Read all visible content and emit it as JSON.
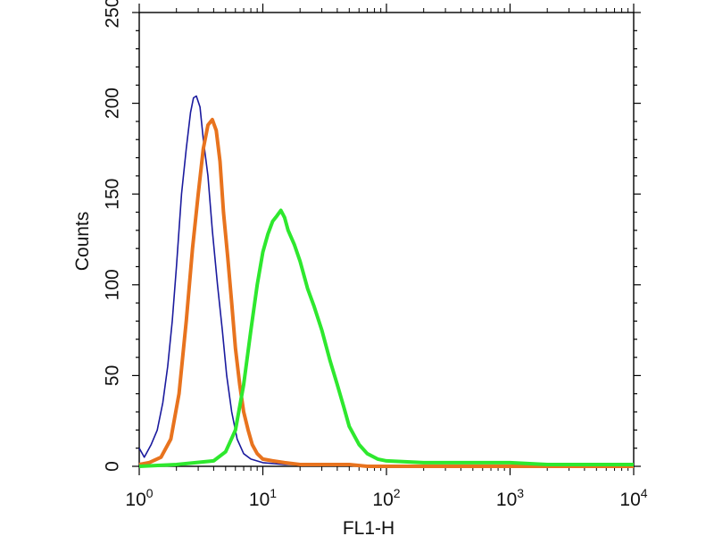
{
  "chart_data": {
    "type": "line",
    "title": "",
    "xlabel": "FL1-H",
    "ylabel": "Counts",
    "x_scale": "log",
    "xlim": [
      1,
      10000
    ],
    "ylim": [
      0,
      250
    ],
    "grid": false,
    "legend": "none",
    "y_ticks": [
      "0",
      "50",
      "100",
      "150",
      "200",
      "250"
    ],
    "x_ticks": [
      {
        "base": "10",
        "exp": "0"
      },
      {
        "base": "10",
        "exp": "1"
      },
      {
        "base": "10",
        "exp": "2"
      },
      {
        "base": "10",
        "exp": "3"
      },
      {
        "base": "10",
        "exp": "4"
      }
    ],
    "series": [
      {
        "color": "#1a1a9e",
        "stroke_weight": "thin",
        "x": [
          1.0,
          1.1,
          1.25,
          1.4,
          1.55,
          1.7,
          1.85,
          2.0,
          2.2,
          2.4,
          2.6,
          2.75,
          2.9,
          3.1,
          3.3,
          3.6,
          3.9,
          4.3,
          4.7,
          5.1,
          5.6,
          6.2,
          7.0,
          8.0,
          10.0,
          15,
          25,
          50,
          100,
          1000,
          10000
        ],
        "y": [
          10,
          5,
          12,
          20,
          35,
          55,
          80,
          110,
          150,
          175,
          195,
          203,
          204,
          198,
          180,
          160,
          130,
          100,
          75,
          50,
          30,
          15,
          7,
          4,
          2,
          1,
          1,
          1,
          0,
          0,
          0
        ]
      },
      {
        "color": "#e8731e",
        "stroke_weight": "thick",
        "x": [
          1.0,
          1.2,
          1.5,
          1.8,
          2.1,
          2.4,
          2.7,
          3.0,
          3.3,
          3.6,
          3.9,
          4.2,
          4.5,
          4.8,
          5.2,
          5.6,
          6.0,
          6.5,
          7.0,
          7.6,
          8.2,
          9.0,
          10.0,
          12,
          15,
          20,
          30,
          50,
          70,
          100,
          1000,
          10000
        ],
        "y": [
          1,
          2,
          5,
          15,
          40,
          80,
          120,
          150,
          175,
          188,
          191,
          185,
          168,
          140,
          115,
          90,
          65,
          45,
          30,
          20,
          12,
          7,
          4,
          3,
          2,
          1,
          1,
          1,
          0,
          0,
          0,
          0
        ]
      },
      {
        "color": "#2ee82e",
        "stroke_weight": "thick",
        "x": [
          1.0,
          2.0,
          4.0,
          5.0,
          6.0,
          7.0,
          8.0,
          9.0,
          10.0,
          11.0,
          12.0,
          13.0,
          14.0,
          15.0,
          16.0,
          18.0,
          20.0,
          23.0,
          26.0,
          30.0,
          35.0,
          40.0,
          45.0,
          50.0,
          60.0,
          70.0,
          85.0,
          100,
          200,
          500,
          1000,
          2000,
          10000
        ],
        "y": [
          0,
          1,
          3,
          8,
          20,
          45,
          75,
          100,
          118,
          128,
          135,
          138,
          141,
          137,
          130,
          122,
          113,
          98,
          88,
          75,
          58,
          45,
          33,
          22,
          12,
          7,
          4,
          3,
          2,
          2,
          2,
          1,
          1
        ]
      }
    ]
  }
}
